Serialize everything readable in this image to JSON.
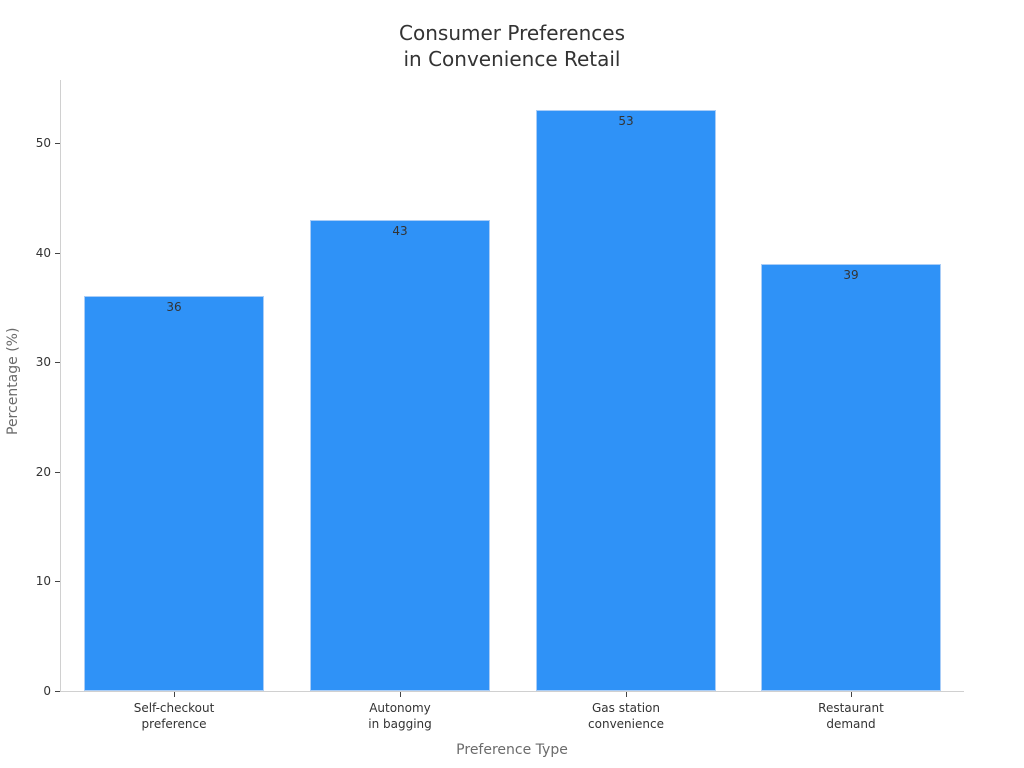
{
  "chart_data": {
    "type": "bar",
    "title": "Consumer Preferences\nin Convenience Retail",
    "title_lines": [
      "Consumer Preferences",
      "in Convenience Retail"
    ],
    "categories": [
      "Self-checkout preference",
      "Autonomy in bagging",
      "Gas station convenience",
      "Restaurant demand"
    ],
    "category_lines": [
      [
        "Self-checkout",
        "preference"
      ],
      [
        "Autonomy",
        "in bagging"
      ],
      [
        "Gas station",
        "convenience"
      ],
      [
        "Restaurant",
        "demand"
      ]
    ],
    "values": [
      36,
      43,
      53,
      39
    ],
    "xlabel": "Preference Type",
    "ylabel": "Percentage (%)",
    "ylim": [
      0,
      55.5
    ],
    "yticks": [
      0,
      10,
      20,
      30,
      40,
      50
    ],
    "grid": false,
    "legend": null,
    "bar_color": "#2f92f7",
    "data_labels": true
  }
}
